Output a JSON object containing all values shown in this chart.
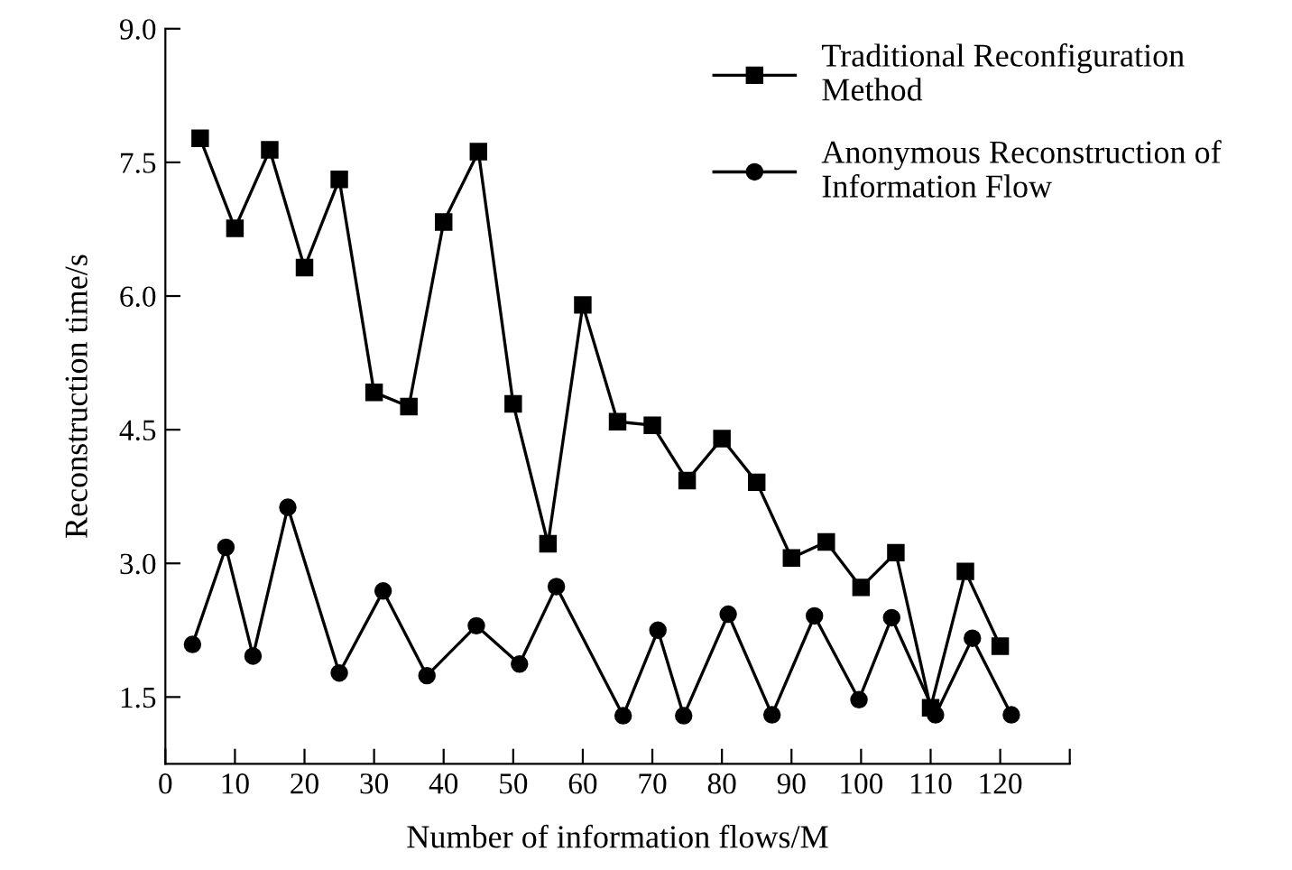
{
  "chart_data": {
    "type": "line",
    "xlabel": "Number of information flows/M",
    "ylabel": "Reconstruction time/s",
    "xlim": [
      0,
      130
    ],
    "xticks": [
      0,
      10,
      20,
      30,
      40,
      50,
      60,
      70,
      80,
      90,
      100,
      110,
      120,
      {
        "value": 130,
        "label": null
      }
    ],
    "ylim": [
      0.75,
      9.0
    ],
    "yticks": [
      {
        "value": 1.5,
        "label": "1.5"
      },
      {
        "value": 3.0,
        "label": "3.0"
      },
      {
        "value": 4.5,
        "label": "4.5"
      },
      {
        "value": 6.0,
        "label": "6.0"
      },
      {
        "value": 7.5,
        "label": "7.5"
      },
      {
        "value": 9.0,
        "label": "9.0"
      }
    ],
    "grid": false,
    "legend": "top right",
    "series": [
      {
        "name": "Traditional Reconfiguration\nMethod",
        "color": "#000000",
        "marker": "square",
        "x": [
          5,
          10,
          15,
          20,
          25,
          30,
          35,
          40,
          45,
          50,
          55,
          60,
          65,
          70,
          75,
          80,
          85,
          90,
          95,
          100,
          105,
          110,
          115,
          120
        ],
        "values": [
          7.77,
          6.76,
          7.64,
          6.32,
          7.31,
          4.92,
          4.76,
          6.83,
          7.62,
          4.79,
          3.22,
          5.9,
          4.59,
          4.55,
          3.93,
          4.4,
          3.91,
          3.06,
          3.24,
          2.73,
          3.12,
          1.38,
          2.91,
          2.07
        ]
      },
      {
        "name": "Anonymous Reconstruction of\nInformation Flow",
        "color": "#000000",
        "marker": "circle",
        "x": [
          3.9,
          8.7,
          12.6,
          17.6,
          25,
          31.3,
          37.6,
          44.7,
          50.9,
          56.2,
          65.8,
          70.8,
          74.5,
          80.9,
          87.2,
          93.3,
          99.7,
          104.4,
          110.7,
          116,
          121.6
        ],
        "values": [
          2.09,
          3.18,
          1.96,
          3.63,
          1.77,
          2.69,
          1.74,
          2.3,
          1.87,
          2.74,
          1.29,
          2.25,
          1.29,
          2.43,
          1.3,
          2.41,
          1.47,
          2.39,
          1.3,
          2.16,
          1.3
        ]
      }
    ]
  }
}
